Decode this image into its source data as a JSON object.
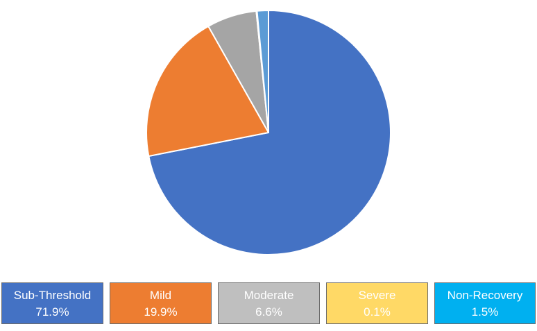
{
  "chart_data": {
    "type": "pie",
    "slices": [
      {
        "label": "Sub-Threshold",
        "value": 71.9,
        "value_label": "71.9%",
        "color": "#4472C4"
      },
      {
        "label": "Mild",
        "value": 19.9,
        "value_label": "19.9%",
        "color": "#ED7D31"
      },
      {
        "label": "Moderate",
        "value": 6.6,
        "value_label": "6.6%",
        "color": "#A5A5A5"
      },
      {
        "label": "Severe",
        "value": 0.1,
        "value_label": "0.1%",
        "color": "#FFD966"
      },
      {
        "label": "Non-Recovery",
        "value": 1.5,
        "value_label": "1.5%",
        "color": "#5B9BD5"
      }
    ],
    "legend": {
      "position": "bottom",
      "entries": [
        {
          "label": "Sub-Threshold",
          "value_label": "71.9%",
          "color": "#4472C4"
        },
        {
          "label": "Mild",
          "value_label": "19.9%",
          "color": "#ED7D31"
        },
        {
          "label": "Moderate",
          "value_label": "6.6%",
          "color": "#BFBFBF"
        },
        {
          "label": "Severe",
          "value_label": "0.1%",
          "color": "#FFD966"
        },
        {
          "label": "Non-Recovery",
          "value_label": "1.5%",
          "color": "#00B0F0"
        }
      ]
    }
  }
}
